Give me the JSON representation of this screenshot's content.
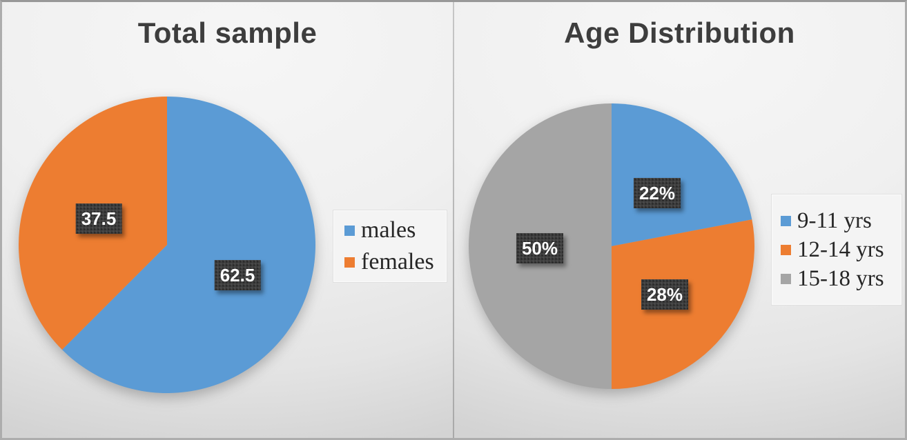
{
  "chart_data": [
    {
      "type": "pie",
      "title": "Total sample",
      "slices": [
        {
          "name": "males",
          "value": 62.5,
          "label": "62.5",
          "color": "#5B9BD5"
        },
        {
          "name": "females",
          "value": 37.5,
          "label": "37.5",
          "color": "#ED7D31"
        }
      ],
      "start_angle_deg": 0,
      "direction": "clockwise",
      "legend_position": "right",
      "label_style": "dark-box-white-text"
    },
    {
      "type": "pie",
      "title": "Age Distribution",
      "slices": [
        {
          "name": "9-11 yrs",
          "value": 22,
          "label": "22%",
          "color": "#5B9BD5"
        },
        {
          "name": "12-14 yrs",
          "value": 28,
          "label": "28%",
          "color": "#ED7D31"
        },
        {
          "name": "15-18 yrs",
          "value": 50,
          "label": "50%",
          "color": "#A5A5A5"
        }
      ],
      "start_angle_deg": 0,
      "direction": "clockwise",
      "legend_position": "right",
      "label_style": "dark-box-white-text"
    }
  ],
  "style": {
    "title_color": "#3d3d3d",
    "label_box_color": "#3e3e3e",
    "label_text_color": "#ffffff",
    "panel_background": "#ececec",
    "frame_border_color": "#adadad"
  }
}
